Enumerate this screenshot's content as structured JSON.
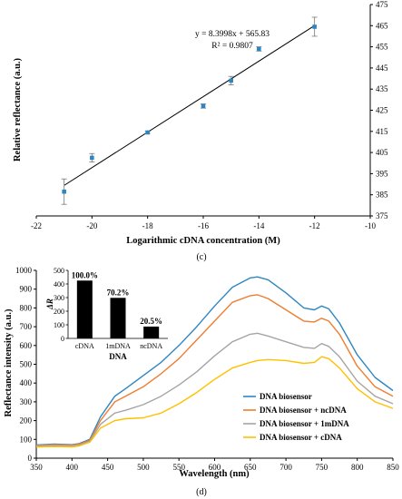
{
  "chart_data": [
    {
      "type": "scatter",
      "panel_label": "(c)",
      "xlabel": "Logarithmic cDNA concentration (M)",
      "ylabel": "Relative reflectance (a.u.)",
      "xlim": [
        -22,
        -10
      ],
      "ylim": [
        375,
        475
      ],
      "x_ticks": [
        -22,
        -20,
        -18,
        -16,
        -14,
        -12,
        -10
      ],
      "y_ticks": [
        375,
        385,
        395,
        405,
        415,
        425,
        435,
        445,
        455,
        465,
        475
      ],
      "y_axis_side": "right",
      "grid": false,
      "points": [
        {
          "x": -21,
          "y": 386.5,
          "err": 6
        },
        {
          "x": -20,
          "y": 402.5,
          "err": 2
        },
        {
          "x": -18,
          "y": 414.5,
          "err": 0.5
        },
        {
          "x": -16,
          "y": 427,
          "err": 1
        },
        {
          "x": -15,
          "y": 439,
          "err": 2
        },
        {
          "x": -14,
          "y": 454,
          "err": 1
        },
        {
          "x": -12,
          "y": 464.5,
          "err": 4.5
        }
      ],
      "fit": {
        "slope": 8.3998,
        "intercept": 565.83
      },
      "annotations": [
        "y = 8.3998x + 565.83",
        "R² = 0.9807"
      ],
      "colors": {
        "points": "#2e86c1",
        "fit": "#000000"
      }
    },
    {
      "type": "line",
      "panel_label": "(d)",
      "xlabel": "Wavelength (nm)",
      "ylabel": "Reflectance intensity (a.u.)",
      "xlim": [
        350,
        850
      ],
      "ylim": [
        0,
        1000
      ],
      "x_ticks": [
        350,
        400,
        450,
        500,
        550,
        600,
        650,
        700,
        750,
        800,
        850
      ],
      "y_ticks": [
        0,
        100,
        200,
        300,
        400,
        500,
        600,
        700,
        800,
        900,
        1000
      ],
      "grid": false,
      "legend_position": "bottom-right",
      "x": [
        350,
        375,
        400,
        410,
        425,
        440,
        460,
        475,
        500,
        525,
        550,
        575,
        600,
        625,
        650,
        660,
        675,
        700,
        725,
        740,
        750,
        760,
        775,
        800,
        825,
        850
      ],
      "series": [
        {
          "name": "DNA biosensor",
          "color": "#2e86c1",
          "values": [
            70,
            75,
            72,
            78,
            100,
            220,
            330,
            370,
            440,
            510,
            600,
            700,
            810,
            910,
            960,
            965,
            950,
            880,
            800,
            790,
            810,
            795,
            720,
            550,
            430,
            360
          ]
        },
        {
          "name": "DNA biosensor + ncDNA",
          "color": "#ef7d31",
          "values": [
            68,
            72,
            70,
            75,
            95,
            200,
            300,
            330,
            380,
            450,
            530,
            630,
            730,
            830,
            865,
            870,
            850,
            790,
            730,
            725,
            745,
            730,
            660,
            490,
            380,
            330
          ]
        },
        {
          "name": "DNA biosensor + 1mDNA",
          "color": "#a5a5a5",
          "values": [
            65,
            68,
            66,
            70,
            90,
            180,
            240,
            255,
            285,
            330,
            390,
            460,
            545,
            620,
            660,
            665,
            650,
            620,
            590,
            585,
            610,
            595,
            540,
            410,
            330,
            290
          ]
        },
        {
          "name": "DNA biosensor + cDNA",
          "color": "#ffc000",
          "values": [
            60,
            62,
            60,
            65,
            85,
            160,
            200,
            210,
            215,
            240,
            290,
            350,
            420,
            480,
            510,
            520,
            525,
            520,
            505,
            510,
            540,
            530,
            480,
            370,
            300,
            265
          ]
        }
      ],
      "inset": {
        "type": "bar",
        "categories": [
          "cDNA",
          "1mDNA",
          "ncDNA"
        ],
        "values": [
          425,
          298,
          87
        ],
        "data_labels": [
          "100.0%",
          "70.2%",
          "20.5%"
        ],
        "xlabel": "DNA",
        "ylabel": "ΔR",
        "ylim": [
          0,
          500
        ],
        "y_ticks": [
          0,
          100,
          200,
          300,
          400,
          500
        ],
        "bar_color": "#000000"
      }
    }
  ]
}
